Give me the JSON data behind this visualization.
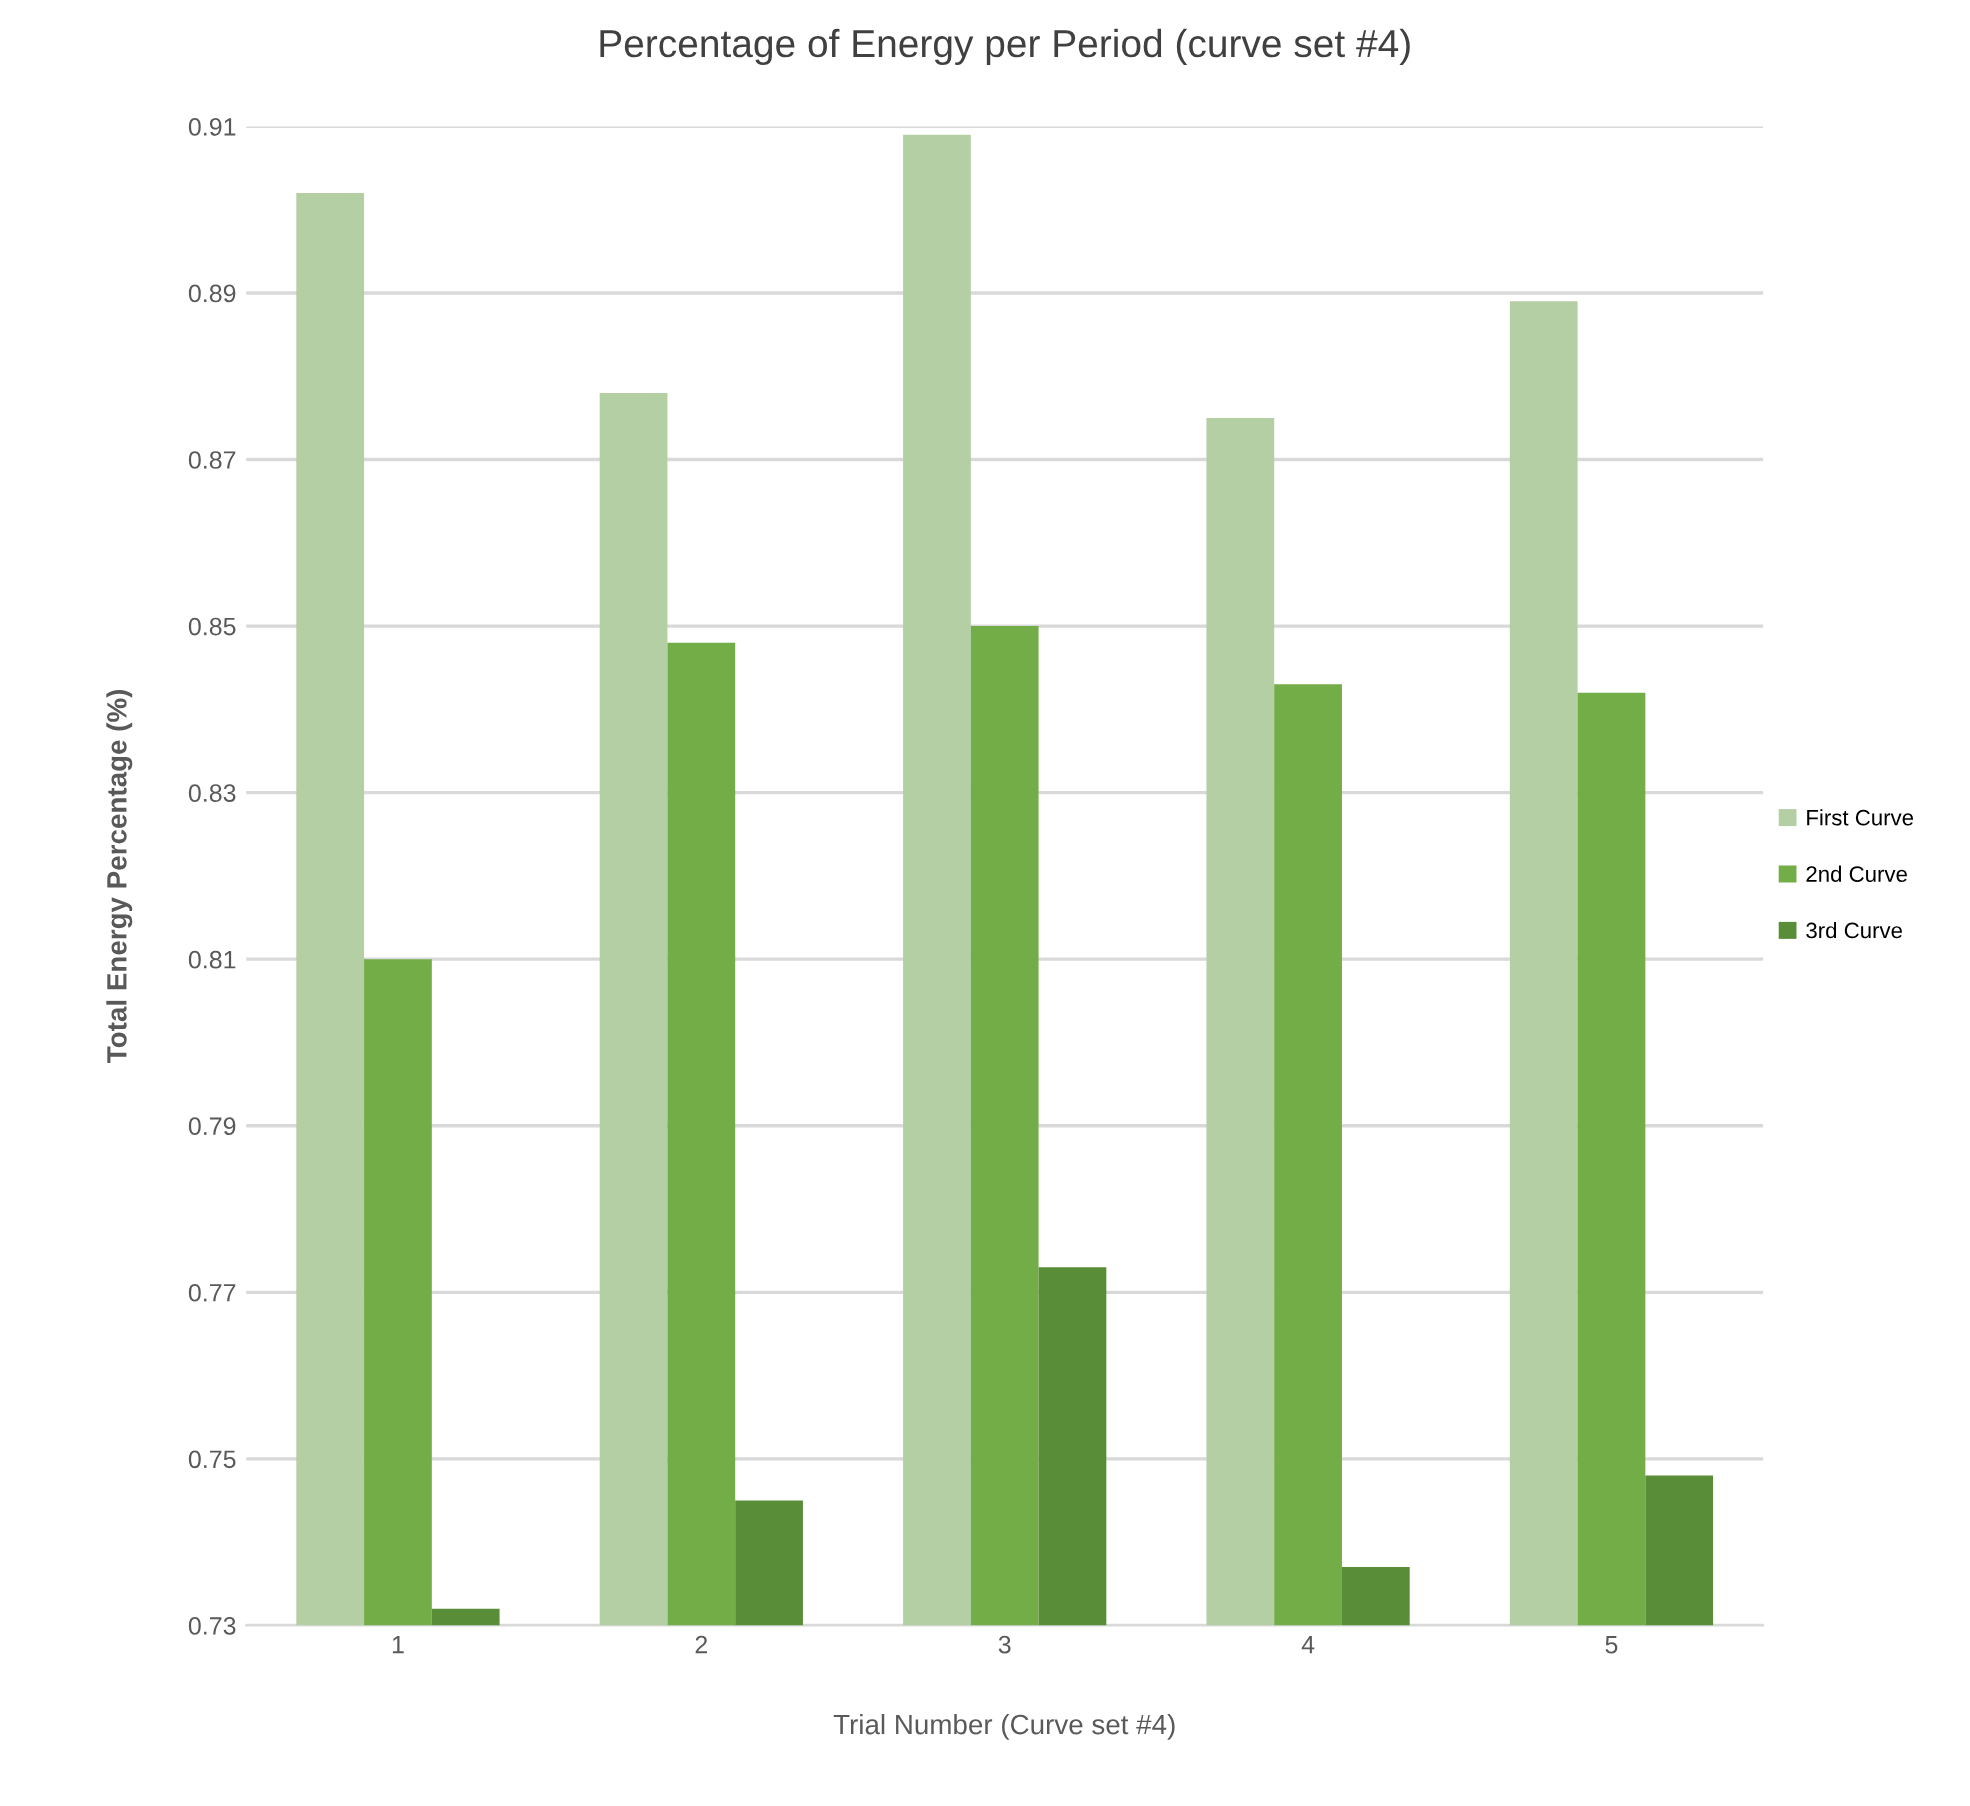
{
  "chart_data": {
    "type": "bar",
    "title": "Percentage of Energy per Period (curve set #4)",
    "xlabel": "Trial Number (Curve set #4)",
    "ylabel": "Total Energy Percentage (%)",
    "categories": [
      "1",
      "2",
      "3",
      "4",
      "5"
    ],
    "series": [
      {
        "name": "First Curve",
        "color": "#b5cfa5",
        "values": [
          0.902,
          0.878,
          0.909,
          0.875,
          0.889
        ]
      },
      {
        "name": "2nd Curve",
        "color": "#72ad48",
        "values": [
          0.81,
          0.848,
          0.85,
          0.843,
          0.842
        ]
      },
      {
        "name": "3rd Curve",
        "color": "#5a8d38",
        "values": [
          0.732,
          0.745,
          0.773,
          0.737,
          0.748
        ]
      }
    ],
    "ylim": [
      0.73,
      0.91
    ],
    "yticks": [
      0.73,
      0.75,
      0.77,
      0.79,
      0.81,
      0.83,
      0.85,
      0.87,
      0.89,
      0.91
    ],
    "grid": "y",
    "legend": "right"
  }
}
